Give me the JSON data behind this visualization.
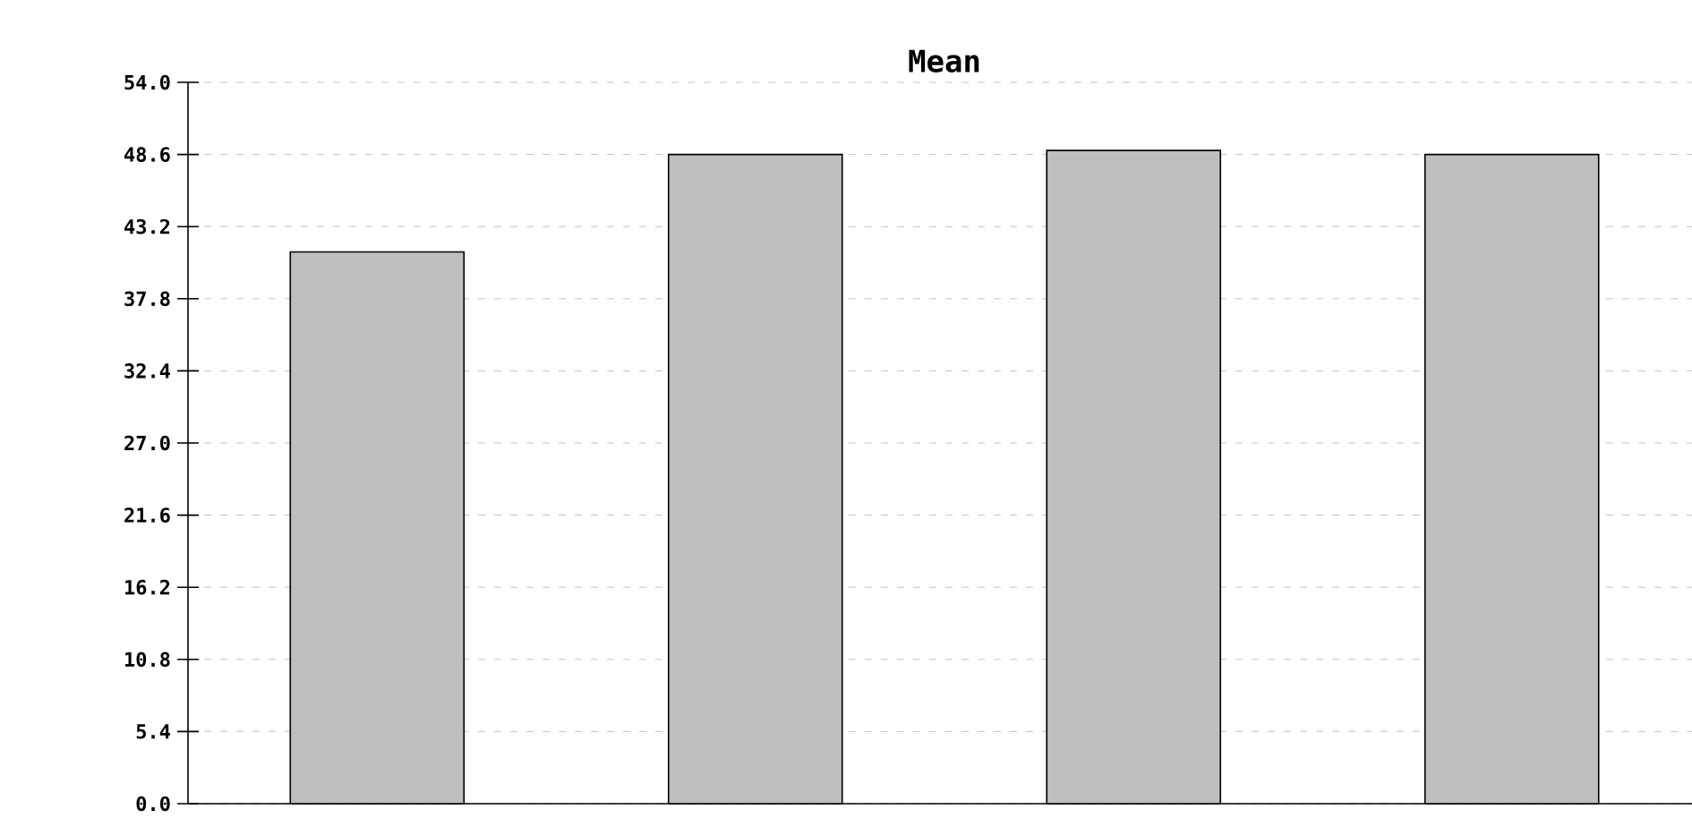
{
  "chart_data": {
    "type": "bar",
    "title": "Mean",
    "categories": [
      null,
      null,
      null,
      null
    ],
    "values": [
      41.3,
      48.6,
      48.9,
      48.6
    ],
    "color": "#bebebe",
    "ylim": [
      0,
      54
    ],
    "yticks": [
      {
        "value": 0,
        "label": "0.0"
      },
      5.4,
      10.8,
      16.2,
      21.6,
      {
        "value": 27,
        "label": "27.0"
      },
      32.4,
      37.8,
      43.2,
      48.6,
      {
        "value": 54,
        "label": "54.0"
      }
    ],
    "grid": "y"
  }
}
